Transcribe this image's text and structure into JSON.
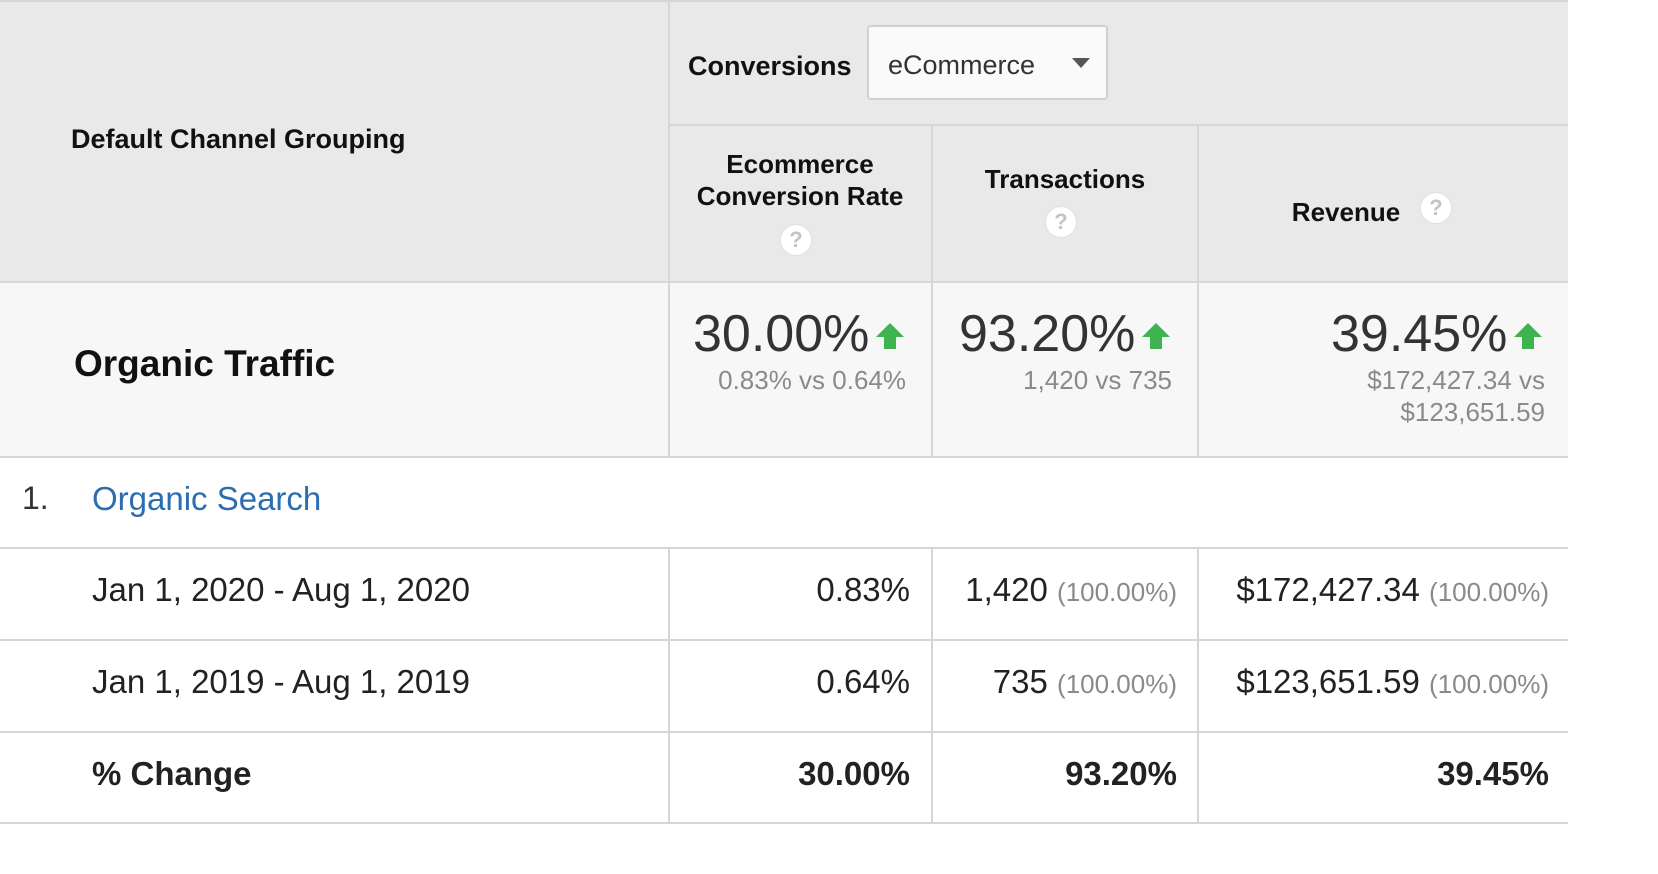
{
  "header": {
    "dimension_label": "Default Channel Grouping",
    "conversions_label": "Conversions",
    "conversions_dropdown_value": "eCommerce",
    "columns": [
      {
        "line1": "Ecommerce",
        "line2": "Conversion Rate"
      },
      {
        "line1": "Transactions"
      },
      {
        "line1": "Revenue"
      }
    ],
    "help_glyph": "?"
  },
  "summary": {
    "segment_label": "Organic Traffic",
    "metrics": [
      {
        "change": "30.00%",
        "compare": "0.83% vs 0.64%"
      },
      {
        "change": "93.20%",
        "compare": "1,420 vs 735"
      },
      {
        "change": "39.45%",
        "compare_line1": "$172,427.34 vs",
        "compare_line2": "$123,651.59"
      }
    ],
    "arrow_color": "#3fb34f"
  },
  "rows": [
    {
      "index": "1.",
      "channel": "Organic Search",
      "periods": [
        {
          "label": "Jan 1, 2020 - Aug 1, 2020",
          "conv_rate": "0.83%",
          "transactions": "1,420",
          "transactions_share": "(100.00%)",
          "revenue": "$172,427.34",
          "revenue_share": "(100.00%)"
        },
        {
          "label": "Jan 1, 2019 - Aug 1, 2019",
          "conv_rate": "0.64%",
          "transactions": "735",
          "transactions_share": "(100.00%)",
          "revenue": "$123,651.59",
          "revenue_share": "(100.00%)"
        }
      ],
      "change": {
        "label": "% Change",
        "conv_rate": "30.00%",
        "transactions": "93.20%",
        "revenue": "39.45%"
      }
    }
  ],
  "colors": {
    "link": "#2a6db0",
    "header_bg": "#e9e9e9",
    "summary_bg": "#f7f7f7"
  }
}
